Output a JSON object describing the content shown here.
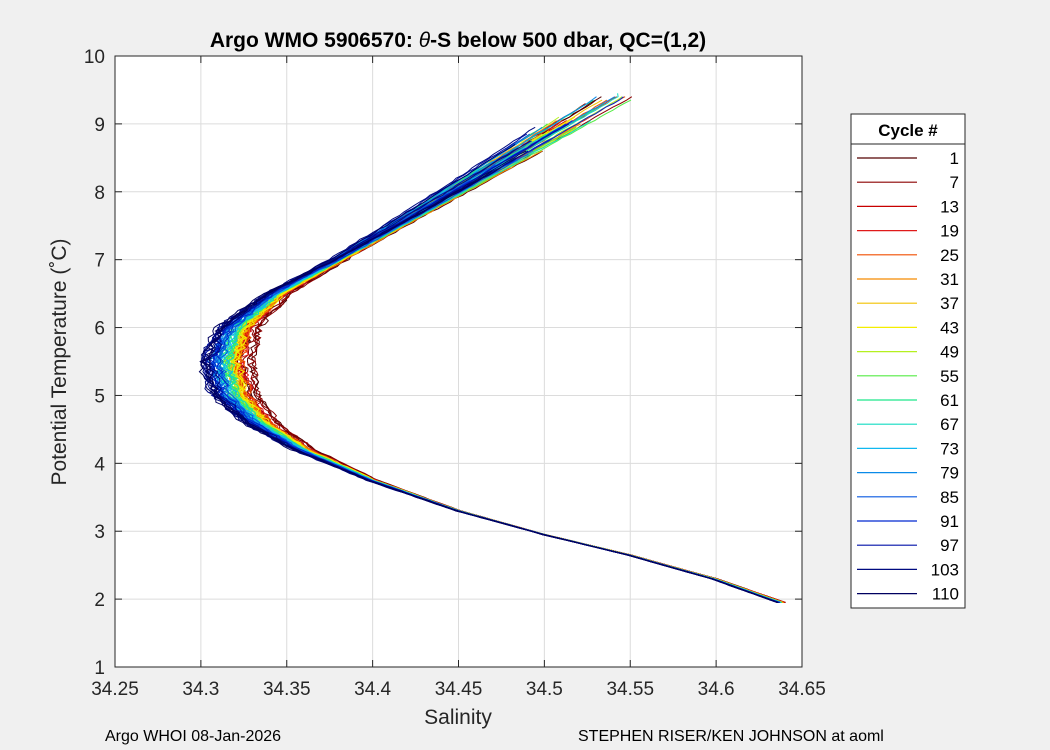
{
  "chart_data": {
    "type": "line",
    "title_prefix": "Argo WMO 5906570: ",
    "title_theta": "θ",
    "title_suffix": "-S below 500 dbar,  QC=(1,2)",
    "xlabel": "Salinity",
    "ylabel": "Potential Temperature (˚C)",
    "xlim": [
      34.25,
      34.65
    ],
    "ylim": [
      1,
      10
    ],
    "xticks": [
      "34.25",
      "34.3",
      "34.35",
      "34.4",
      "34.45",
      "34.5",
      "34.55",
      "34.6",
      "34.65"
    ],
    "yticks": [
      "1",
      "2",
      "3",
      "4",
      "5",
      "6",
      "7",
      "8",
      "9",
      "10"
    ],
    "grid": true,
    "legend": {
      "title": "Cycle #",
      "placement": "right-outside",
      "entries": [
        {
          "label": "1",
          "color": "#550000"
        },
        {
          "label": "7",
          "color": "#8c0000"
        },
        {
          "label": "13",
          "color": "#c80000"
        },
        {
          "label": "19",
          "color": "#e01a1a"
        },
        {
          "label": "25",
          "color": "#f04f00"
        },
        {
          "label": "31",
          "color": "#f58a00"
        },
        {
          "label": "37",
          "color": "#f2c200"
        },
        {
          "label": "43",
          "color": "#f4ee00"
        },
        {
          "label": "49",
          "color": "#b5f020"
        },
        {
          "label": "55",
          "color": "#55ec45"
        },
        {
          "label": "61",
          "color": "#1ee88a"
        },
        {
          "label": "67",
          "color": "#12dcc2"
        },
        {
          "label": "73",
          "color": "#10b8f0"
        },
        {
          "label": "79",
          "color": "#0a8ae8"
        },
        {
          "label": "85",
          "color": "#0858e0"
        },
        {
          "label": "91",
          "color": "#0028d0"
        },
        {
          "label": "97",
          "color": "#0010a8"
        },
        {
          "label": "103",
          "color": "#000a80"
        },
        {
          "label": "110",
          "color": "#000060"
        }
      ]
    },
    "series_shape": {
      "points": [
        {
          "s": 34.64,
          "t": 1.95
        },
        {
          "s": 34.6,
          "t": 2.3
        },
        {
          "s": 34.55,
          "t": 2.65
        },
        {
          "s": 34.5,
          "t": 2.95
        },
        {
          "s": 34.45,
          "t": 3.3
        },
        {
          "s": 34.4,
          "t": 3.75
        },
        {
          "s": 34.36,
          "t": 4.2
        },
        {
          "s": 34.335,
          "t": 4.6
        },
        {
          "s": 34.32,
          "t": 5.0
        },
        {
          "s": 34.315,
          "t": 5.5
        },
        {
          "s": 34.322,
          "t": 6.0
        },
        {
          "s": 34.345,
          "t": 6.5
        },
        {
          "s": 34.38,
          "t": 7.0
        },
        {
          "s": 34.42,
          "t": 7.6
        },
        {
          "s": 34.46,
          "t": 8.2
        },
        {
          "s": 34.5,
          "t": 8.8
        },
        {
          "s": 34.54,
          "t": 9.4
        }
      ]
    }
  },
  "footer": {
    "left": "Argo WHOI 08-Jan-2026",
    "right": "STEPHEN RISER/KEN JOHNSON at aoml"
  }
}
